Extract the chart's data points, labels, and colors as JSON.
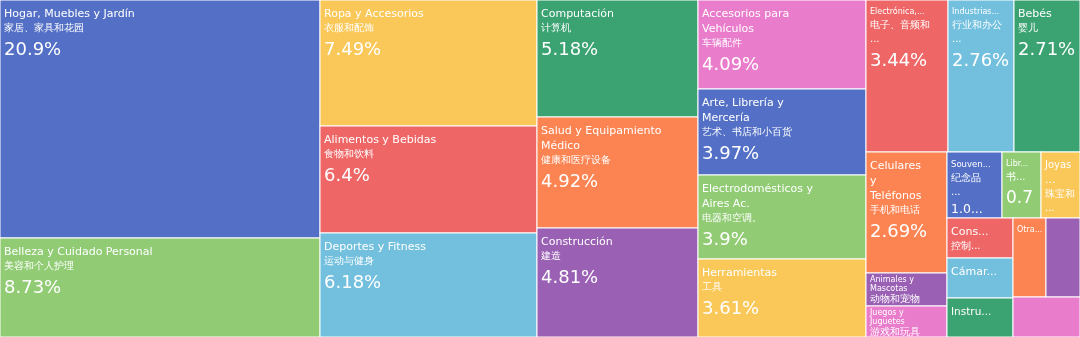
{
  "chart_data": {
    "type": "other",
    "categories": [
      "Hogar, Muebles y Jardín\n家居、家具和花园",
      "Belleza y Cuidado Personal\n美容和个人护理",
      "Ropa y Accesorios\n衣服和配饰",
      "Alimentos y Bebidas\n食物和饮料",
      "Deportes y Fitness\n运动与健身",
      "Computación\n计算机",
      "Salud y Equipamiento Médico\n健康和医疗设备",
      "Construcción\n建造",
      "Accesorios para Vehículos\n车辆配件",
      "Arte, Librería y Mercería\n艺术、书店和小百货",
      "Electrodomésticos y Aires Ac.\n电器和空调。",
      "Herramientas\n工具",
      "Electrónica,...\n电子、音频和...",
      "Industrias...\n行业和办公...",
      "Bebés\n婴儿",
      "Celulares y Teléfonos\n手机和电话",
      "Animales y Mascotas\n动物和宠物",
      "Juegos y Juguetes\n游戏和玩具",
      "Souven...\n纪念品...",
      "Libr...\n书...",
      "Joyas ...\n珠宝和...",
      "Cons...\n控制...",
      "Cámar...",
      "Instru...",
      "Otra...",
      null,
      null
    ],
    "values": [
      20.9,
      8.73,
      7.49,
      6.4,
      6.18,
      5.18,
      4.92,
      4.81,
      4.09,
      3.97,
      3.9,
      3.61,
      3.44,
      2.76,
      2.71,
      2.69,
      null,
      null,
      1.0,
      0.7,
      null,
      null,
      null,
      null,
      null,
      null,
      null
    ],
    "value_labels": [
      "20.9%",
      "8.73%",
      "7.49%",
      "6.4%",
      "6.18%",
      "5.18%",
      "4.92%",
      "4.81%",
      "4.09%",
      "3.97%",
      "3.9%",
      "3.61%",
      "3.44%",
      "2.76%",
      "2.71%",
      "2.69%",
      null,
      null,
      "1.0...",
      "0.7",
      null,
      null,
      null,
      null,
      null,
      null,
      null
    ],
    "colors": [
      "#5470c6",
      "#91cc75",
      "#fac858",
      "#ee6666",
      "#73c0de",
      "#3ba272",
      "#fc8452",
      "#9a60b4",
      "#ea7ccc",
      "#5470c6",
      "#91cc75",
      "#fac858",
      "#ee6666",
      "#73c0de",
      "#3ba272",
      "#fc8452",
      "#9a60b4",
      "#ea7ccc",
      "#5470c6",
      "#91cc75",
      "#fac858",
      "#ee6666",
      "#73c0de",
      "#3ba272",
      "#fc8452",
      "#9a60b4",
      "#ea7ccc"
    ]
  }
}
